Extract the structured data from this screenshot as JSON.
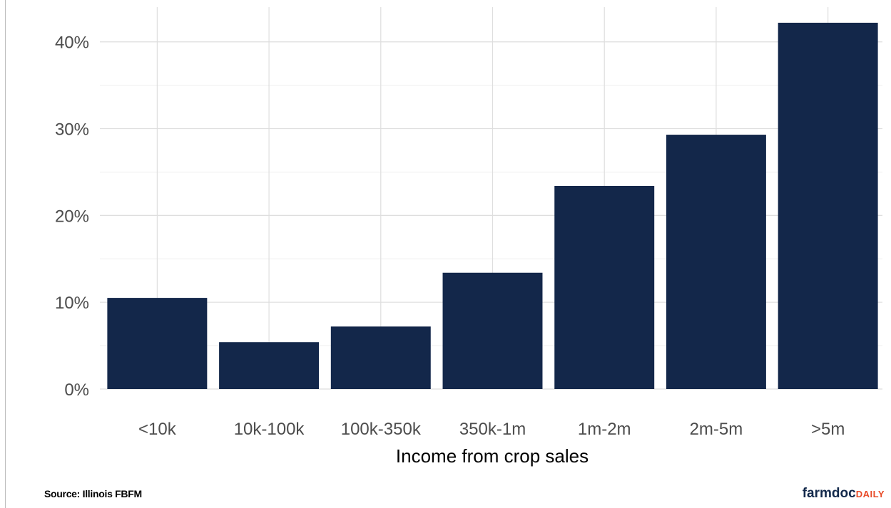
{
  "chart_data": {
    "type": "bar",
    "categories": [
      "<10k",
      "10k-100k",
      "100k-350k",
      "350k-1m",
      "1m-2m",
      "2m-5m",
      ">5m"
    ],
    "values": [
      10.5,
      5.4,
      7.2,
      13.4,
      23.4,
      29.3,
      42.2
    ],
    "xlabel": "Income from crop sales",
    "ylabel": "",
    "ylim": [
      0,
      44
    ],
    "yticks": [
      0,
      10,
      20,
      30,
      40
    ],
    "ytick_labels": [
      "0%",
      "10%",
      "20%",
      "30%",
      "40%"
    ],
    "bar_color": "#13274a",
    "grid": true,
    "legend": "none"
  },
  "footer": {
    "source": "Source: Illinois FBFM",
    "brand_main": "farmdoc",
    "brand_sub": "DAILY"
  },
  "colors": {
    "brand_navy": "#13294b",
    "brand_orange": "#e84a27",
    "grid": "#dedede"
  }
}
